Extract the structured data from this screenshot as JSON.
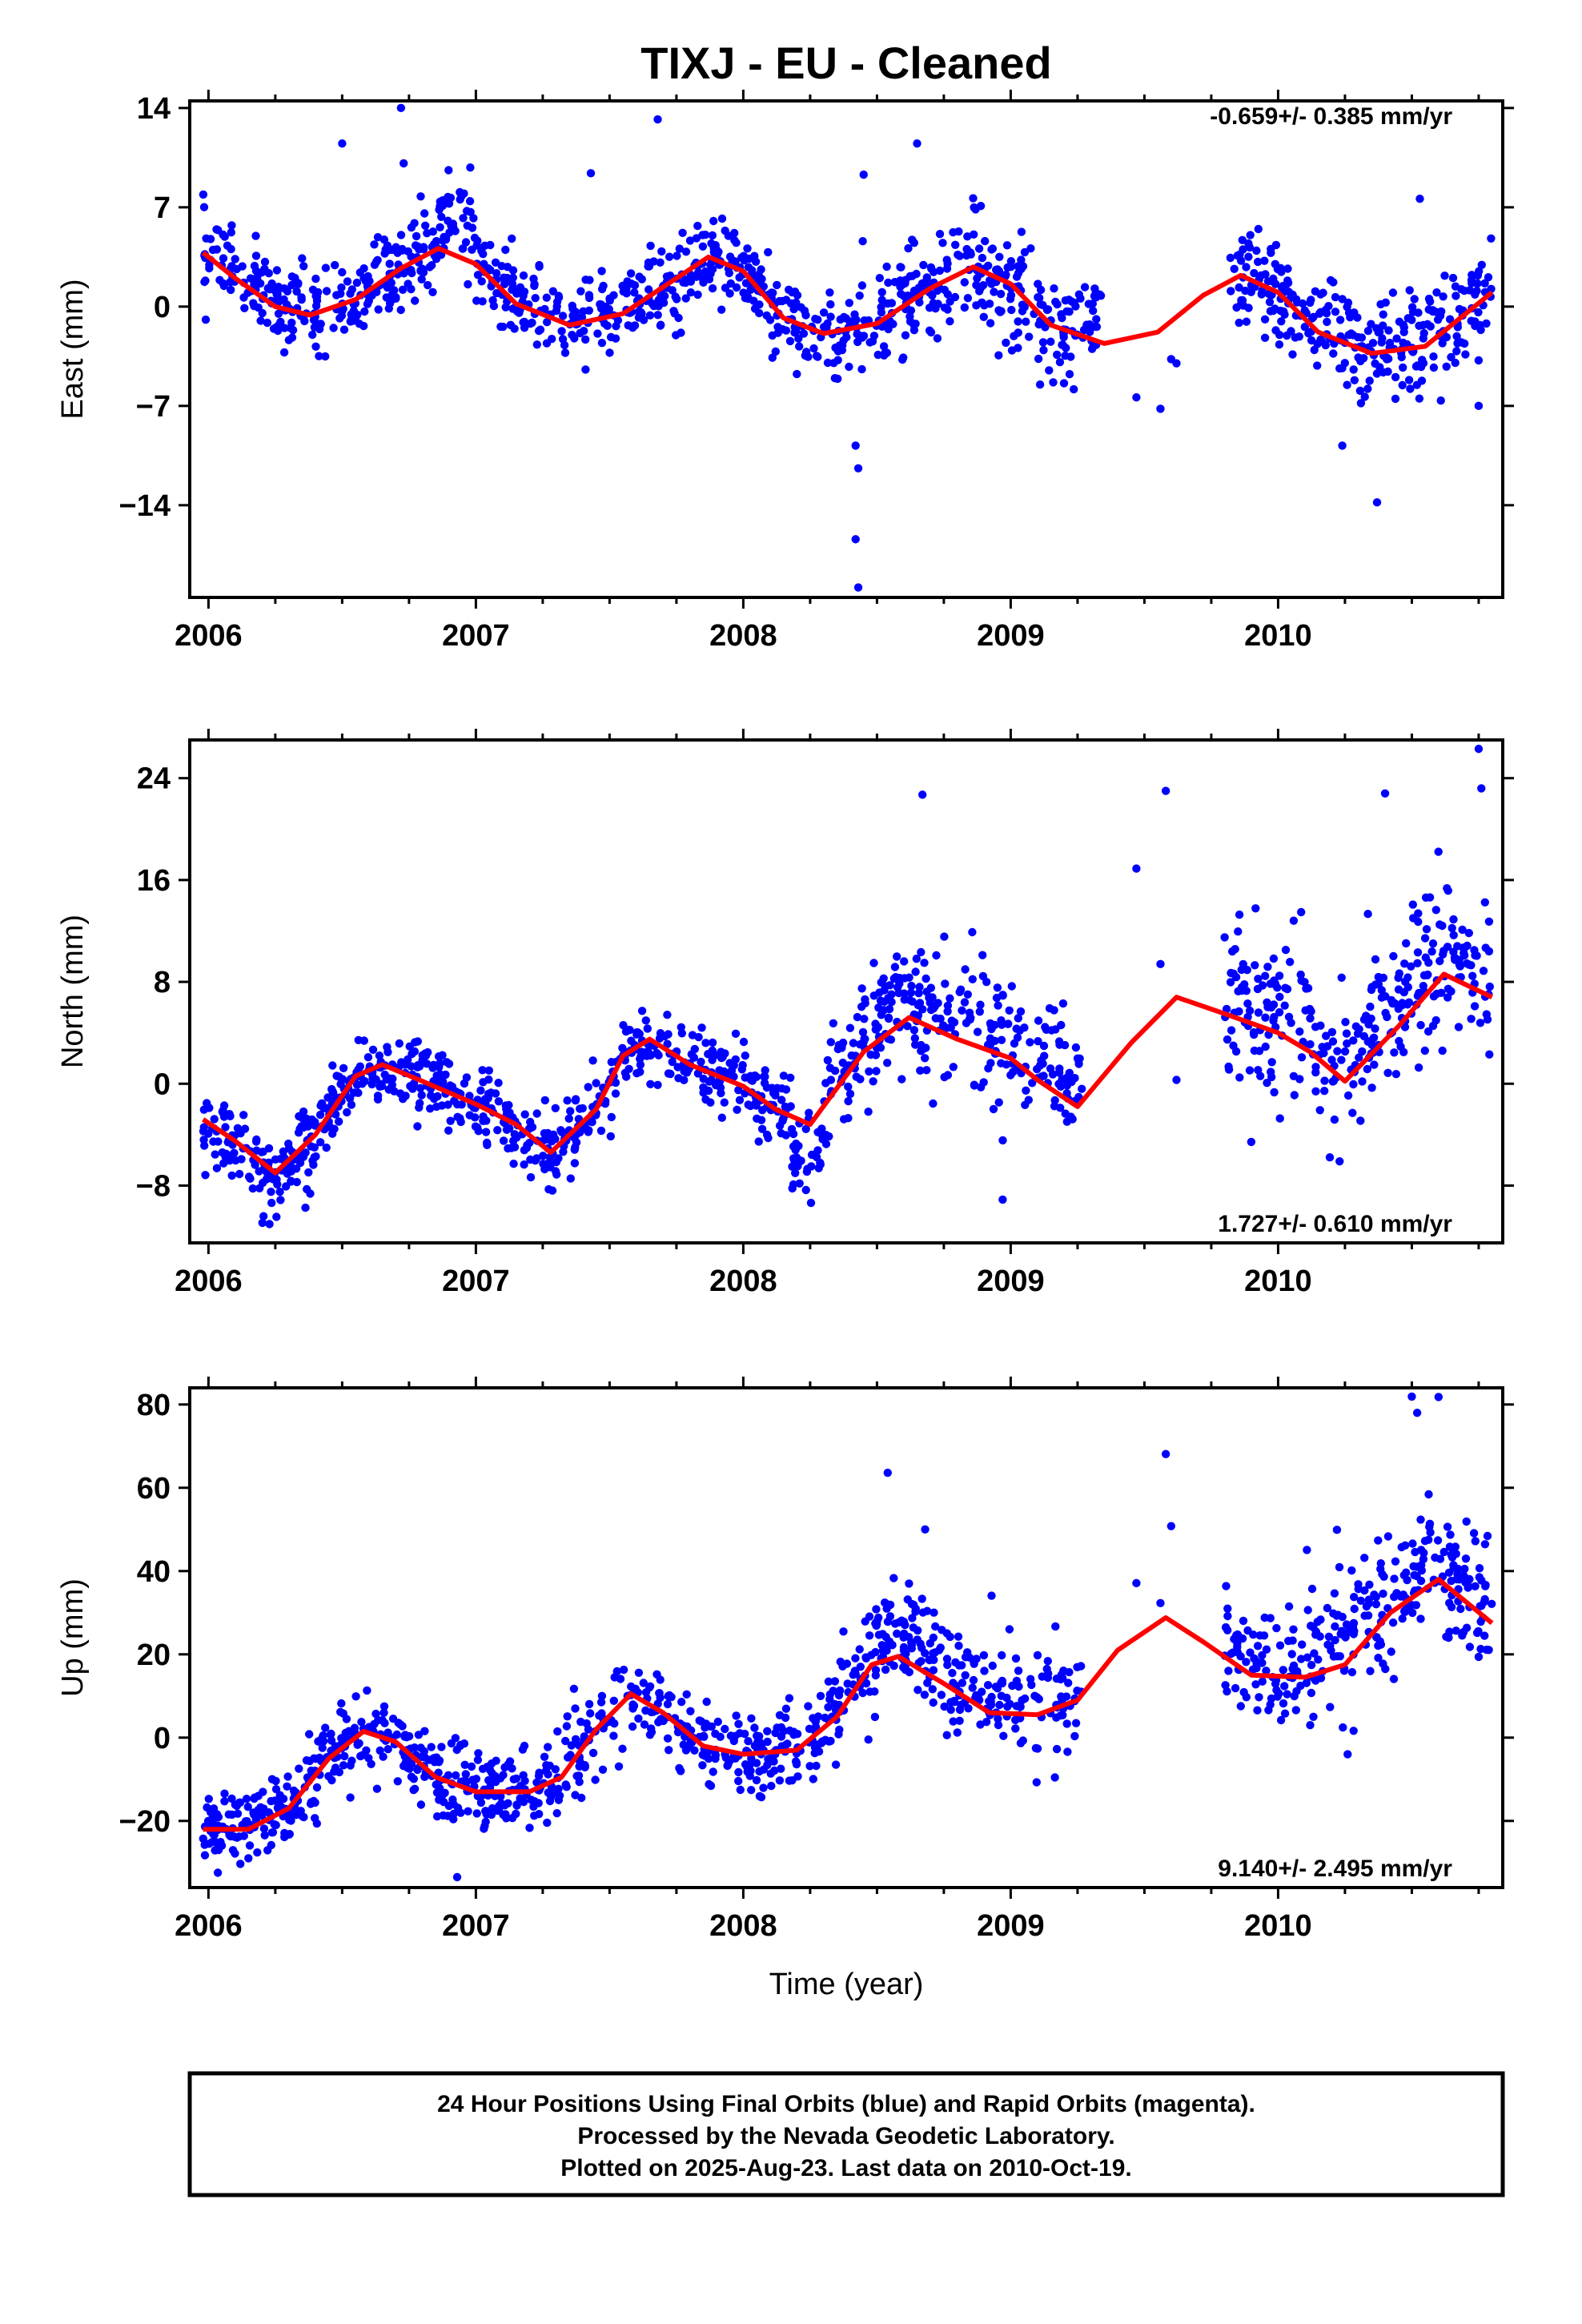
{
  "title": "TIXJ  - EU - Cleaned",
  "xlabel": "Time (year)",
  "colors": {
    "points": "#0000ff",
    "fit": "#ff0000",
    "frame": "#000000"
  },
  "footer": [
    "24 Hour Positions Using Final Orbits (blue) and Rapid Orbits (magenta).",
    "Processed by the Nevada Geodetic Laboratory.",
    "Plotted on 2025-Aug-23. Last data on 2010-Oct-19."
  ],
  "chart_data": [
    {
      "type": "scatter",
      "ylabel": "East (mm)",
      "rate": "-0.659+/- 0.385 mm/yr",
      "rate_position": "top-right",
      "xlim": [
        2005.93,
        2010.84
      ],
      "ylim": [
        -20.5,
        14.5
      ],
      "yticks": [
        -14,
        -7,
        0,
        7,
        14
      ],
      "xticks": [
        2006,
        2007,
        2008,
        2009,
        2010
      ],
      "outliers": [
        {
          "x": 2006.35,
          "y": 3.4
        },
        {
          "x": 2006.5,
          "y": 11.5
        },
        {
          "x": 2006.72,
          "y": 14.0
        },
        {
          "x": 2006.73,
          "y": 10.1
        },
        {
          "x": 2007.43,
          "y": 9.4
        },
        {
          "x": 2007.68,
          "y": 13.2
        },
        {
          "x": 2008.45,
          "y": 9.3
        },
        {
          "x": 2008.65,
          "y": 11.5
        },
        {
          "x": 2008.42,
          "y": -16.4
        },
        {
          "x": 2008.43,
          "y": -19.8
        },
        {
          "x": 2008.43,
          "y": -11.4
        },
        {
          "x": 2008.42,
          "y": -9.8
        },
        {
          "x": 2009.47,
          "y": -6.4
        },
        {
          "x": 2009.56,
          "y": -7.2
        },
        {
          "x": 2009.6,
          "y": -3.7
        },
        {
          "x": 2009.62,
          "y": -4.0
        },
        {
          "x": 2010.24,
          "y": -9.8
        },
        {
          "x": 2010.37,
          "y": -13.8
        },
        {
          "x": 2010.53,
          "y": 7.6
        },
        {
          "x": 2010.75,
          "y": -7.0
        }
      ],
      "segments": [
        {
          "x0": 2005.98,
          "x1": 2006.86,
          "offset": 0.3,
          "spread": 1.4
        },
        {
          "x0": 2006.86,
          "x1": 2007.0,
          "offset": 2.2,
          "spread": 1.6
        },
        {
          "x0": 2007.0,
          "x1": 2008.27,
          "offset": 0.0,
          "spread": 1.4
        },
        {
          "x0": 2008.27,
          "x1": 2009.24,
          "offset": 0.0,
          "spread": 1.9
        },
        {
          "x0": 2009.24,
          "x1": 2009.34,
          "offset": 1.5,
          "spread": 1.6
        },
        {
          "x0": 2009.82,
          "x1": 2010.8,
          "offset": 0.0,
          "spread": 1.8
        }
      ],
      "fit": [
        {
          "x": 2005.98,
          "y": 3.8
        },
        {
          "x": 2006.1,
          "y": 2.0
        },
        {
          "x": 2006.25,
          "y": 0.0
        },
        {
          "x": 2006.38,
          "y": -0.6
        },
        {
          "x": 2006.55,
          "y": 0.5
        },
        {
          "x": 2006.72,
          "y": 2.7
        },
        {
          "x": 2006.86,
          "y": 4.1
        },
        {
          "x": 2007.0,
          "y": 3.0
        },
        {
          "x": 2007.15,
          "y": 0.2
        },
        {
          "x": 2007.35,
          "y": -1.3
        },
        {
          "x": 2007.55,
          "y": -0.5
        },
        {
          "x": 2007.75,
          "y": 2.0
        },
        {
          "x": 2007.87,
          "y": 3.5
        },
        {
          "x": 2008.0,
          "y": 2.5
        },
        {
          "x": 2008.15,
          "y": -0.8
        },
        {
          "x": 2008.3,
          "y": -1.9
        },
        {
          "x": 2008.5,
          "y": -1.2
        },
        {
          "x": 2008.7,
          "y": 1.3
        },
        {
          "x": 2008.86,
          "y": 2.8
        },
        {
          "x": 2009.0,
          "y": 1.6
        },
        {
          "x": 2009.15,
          "y": -1.3
        },
        {
          "x": 2009.35,
          "y": -2.6
        },
        {
          "x": 2009.55,
          "y": -1.8
        },
        {
          "x": 2009.72,
          "y": 0.8
        },
        {
          "x": 2009.86,
          "y": 2.2
        },
        {
          "x": 2010.0,
          "y": 1.0
        },
        {
          "x": 2010.15,
          "y": -1.8
        },
        {
          "x": 2010.35,
          "y": -3.3
        },
        {
          "x": 2010.55,
          "y": -2.8
        },
        {
          "x": 2010.8,
          "y": 1.0
        }
      ]
    },
    {
      "type": "scatter",
      "ylabel": "North (mm)",
      "rate": "1.727+/- 0.610 mm/yr",
      "rate_position": "bottom-right",
      "xlim": [
        2005.93,
        2010.84
      ],
      "ylim": [
        -12.5,
        27.0
      ],
      "yticks": [
        -8,
        0,
        8,
        16,
        24
      ],
      "xticks": [
        2006,
        2007,
        2008,
        2009,
        2010
      ],
      "outliers": [
        {
          "x": 2008.67,
          "y": 22.7
        },
        {
          "x": 2008.97,
          "y": -9.1
        },
        {
          "x": 2009.47,
          "y": 16.9
        },
        {
          "x": 2009.58,
          "y": 23.0
        },
        {
          "x": 2009.56,
          "y": 9.4
        },
        {
          "x": 2009.62,
          "y": 0.3
        },
        {
          "x": 2009.8,
          "y": 11.5
        },
        {
          "x": 2010.23,
          "y": -6.1
        },
        {
          "x": 2010.4,
          "y": 22.8
        },
        {
          "x": 2010.75,
          "y": 26.3
        },
        {
          "x": 2010.76,
          "y": 23.2
        },
        {
          "x": 2010.79,
          "y": 2.3
        }
      ],
      "segments": [
        {
          "x0": 2005.98,
          "x1": 2006.3,
          "offset": -0.8,
          "spread": 1.5
        },
        {
          "x0": 2006.3,
          "x1": 2008.18,
          "offset": 0.0,
          "spread": 1.5
        },
        {
          "x0": 2008.18,
          "x1": 2008.3,
          "offset": -3.5,
          "spread": 1.8
        },
        {
          "x0": 2008.3,
          "x1": 2009.27,
          "offset": 1.3,
          "spread": 2.4
        },
        {
          "x0": 2009.8,
          "x1": 2010.22,
          "offset": 1.5,
          "spread": 3.2
        },
        {
          "x0": 2010.22,
          "x1": 2010.8,
          "offset": 2.0,
          "spread": 3.4
        }
      ],
      "fit": [
        {
          "x": 2005.98,
          "y": -2.8
        },
        {
          "x": 2006.1,
          "y": -4.5
        },
        {
          "x": 2006.25,
          "y": -7.0
        },
        {
          "x": 2006.4,
          "y": -4.0
        },
        {
          "x": 2006.55,
          "y": 0.6
        },
        {
          "x": 2006.65,
          "y": 1.5
        },
        {
          "x": 2006.8,
          "y": 0.2
        },
        {
          "x": 2007.0,
          "y": -1.6
        },
        {
          "x": 2007.15,
          "y": -3.2
        },
        {
          "x": 2007.28,
          "y": -5.4
        },
        {
          "x": 2007.45,
          "y": -2.0
        },
        {
          "x": 2007.55,
          "y": 2.2
        },
        {
          "x": 2007.65,
          "y": 3.5
        },
        {
          "x": 2007.8,
          "y": 1.5
        },
        {
          "x": 2008.0,
          "y": -0.2
        },
        {
          "x": 2008.12,
          "y": -2.0
        },
        {
          "x": 2008.25,
          "y": -3.2
        },
        {
          "x": 2008.45,
          "y": 2.5
        },
        {
          "x": 2008.62,
          "y": 5.2
        },
        {
          "x": 2008.8,
          "y": 3.5
        },
        {
          "x": 2009.0,
          "y": 2.0
        },
        {
          "x": 2009.1,
          "y": 0.3
        },
        {
          "x": 2009.25,
          "y": -1.8
        },
        {
          "x": 2009.45,
          "y": 3.2
        },
        {
          "x": 2009.62,
          "y": 6.8
        },
        {
          "x": 2009.8,
          "y": 5.5
        },
        {
          "x": 2010.0,
          "y": 4.0
        },
        {
          "x": 2010.12,
          "y": 2.5
        },
        {
          "x": 2010.25,
          "y": 0.2
        },
        {
          "x": 2010.45,
          "y": 4.5
        },
        {
          "x": 2010.62,
          "y": 8.6
        },
        {
          "x": 2010.8,
          "y": 6.8
        }
      ]
    },
    {
      "type": "scatter",
      "ylabel": "Up (mm)",
      "rate": "9.140+/- 2.495 mm/yr",
      "rate_position": "bottom-right",
      "xlim": [
        2005.93,
        2010.84
      ],
      "ylim": [
        -36,
        84
      ],
      "yticks": [
        -20,
        0,
        20,
        40,
        60,
        80
      ],
      "xticks": [
        2006,
        2007,
        2008,
        2009,
        2010
      ],
      "outliers": [
        {
          "x": 2006.93,
          "y": -33.5
        },
        {
          "x": 2008.54,
          "y": 63.6
        },
        {
          "x": 2008.68,
          "y": 50.0
        },
        {
          "x": 2009.47,
          "y": 37.1
        },
        {
          "x": 2009.58,
          "y": 68.1
        },
        {
          "x": 2009.6,
          "y": 50.8
        },
        {
          "x": 2009.56,
          "y": 32.3
        },
        {
          "x": 2010.12,
          "y": 3.0
        },
        {
          "x": 2010.26,
          "y": -4.0
        },
        {
          "x": 2010.22,
          "y": 49.9
        },
        {
          "x": 2010.5,
          "y": 81.9
        },
        {
          "x": 2010.6,
          "y": 81.8
        },
        {
          "x": 2010.52,
          "y": 78.0
        },
        {
          "x": 2010.75,
          "y": 19.4
        }
      ],
      "segments": [
        {
          "x0": 2005.98,
          "x1": 2008.32,
          "offset": 0.0,
          "spread": 4.8
        },
        {
          "x0": 2008.32,
          "x1": 2009.27,
          "offset": 3.5,
          "spread": 6.5
        },
        {
          "x0": 2009.8,
          "x1": 2010.8,
          "offset": 4.0,
          "spread": 8.0
        }
      ],
      "fit": [
        {
          "x": 2005.98,
          "y": -22.0
        },
        {
          "x": 2006.15,
          "y": -22.0
        },
        {
          "x": 2006.3,
          "y": -17.0
        },
        {
          "x": 2006.45,
          "y": -5.0
        },
        {
          "x": 2006.58,
          "y": 1.5
        },
        {
          "x": 2006.7,
          "y": -1.0
        },
        {
          "x": 2006.85,
          "y": -9.5
        },
        {
          "x": 2007.0,
          "y": -13.0
        },
        {
          "x": 2007.2,
          "y": -13.0
        },
        {
          "x": 2007.32,
          "y": -9.5
        },
        {
          "x": 2007.45,
          "y": 2.0
        },
        {
          "x": 2007.58,
          "y": 10.5
        },
        {
          "x": 2007.7,
          "y": 6.0
        },
        {
          "x": 2007.85,
          "y": -2.0
        },
        {
          "x": 2008.0,
          "y": -4.0
        },
        {
          "x": 2008.2,
          "y": -3.0
        },
        {
          "x": 2008.35,
          "y": 5.0
        },
        {
          "x": 2008.48,
          "y": 17.5
        },
        {
          "x": 2008.58,
          "y": 19.5
        },
        {
          "x": 2008.75,
          "y": 13.0
        },
        {
          "x": 2008.92,
          "y": 6.0
        },
        {
          "x": 2009.1,
          "y": 5.5
        },
        {
          "x": 2009.25,
          "y": 9.0
        },
        {
          "x": 2009.4,
          "y": 21.0
        },
        {
          "x": 2009.58,
          "y": 28.8
        },
        {
          "x": 2009.72,
          "y": 23.0
        },
        {
          "x": 2009.9,
          "y": 15.0
        },
        {
          "x": 2010.1,
          "y": 14.5
        },
        {
          "x": 2010.25,
          "y": 17.5
        },
        {
          "x": 2010.42,
          "y": 30.0
        },
        {
          "x": 2010.6,
          "y": 38.0
        },
        {
          "x": 2010.8,
          "y": 27.5
        }
      ]
    }
  ]
}
